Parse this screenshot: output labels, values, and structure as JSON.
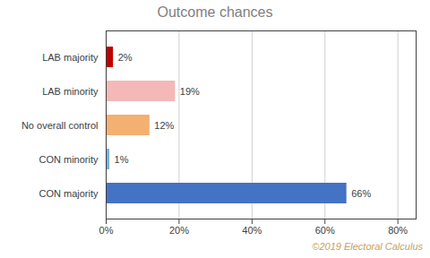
{
  "chart_data": {
    "type": "bar",
    "orientation": "horizontal",
    "title": "Outcome chances",
    "categories": [
      "CON majority",
      "CON minority",
      "No overall control",
      "LAB minority",
      "LAB majority"
    ],
    "values": [
      66,
      1,
      12,
      19,
      2
    ],
    "value_labels": [
      "66%",
      "1%",
      "12%",
      "19%",
      "2%"
    ],
    "data_labels": true,
    "colors": [
      "#4472c4",
      "#7ab0d4",
      "#f4b070",
      "#f4b8b8",
      "#c00000"
    ],
    "xlim": [
      0,
      85
    ],
    "xticks": [
      {
        "value": 0,
        "label": "0%"
      },
      {
        "value": 20,
        "label": "20%"
      },
      {
        "value": 40,
        "label": "40%"
      },
      {
        "value": 60,
        "label": "60%"
      },
      {
        "value": 80,
        "label": "80%"
      }
    ],
    "grid": true,
    "annotations": [
      "©2019 Electoral Calculus"
    ]
  }
}
